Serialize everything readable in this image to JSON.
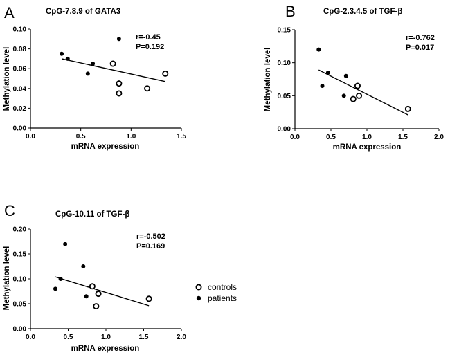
{
  "legend": {
    "entries": [
      {
        "label": "controls",
        "marker": "open-circle"
      },
      {
        "label": "patients",
        "marker": "filled-circle"
      }
    ]
  },
  "chart_data": [
    {
      "panel": "A",
      "type": "scatter",
      "title": "CpG-7.8.9 of GATA3",
      "xlabel": "mRNA expression",
      "ylabel": "Methylation level",
      "xlim": [
        0,
        1.5
      ],
      "ylim": [
        0,
        0.1
      ],
      "xticks": [
        0,
        0.5,
        1.0,
        1.5
      ],
      "xtick_labels": [
        "0.0",
        "0.5",
        "1.0",
        "1.5"
      ],
      "yticks": [
        0,
        0.02,
        0.04,
        0.06,
        0.08,
        0.1
      ],
      "ytick_labels": [
        "0.00",
        "0.02",
        "0.04",
        "0.06",
        "0.08",
        "0.10"
      ],
      "series": [
        {
          "name": "controls",
          "x": [
            0.82,
            0.88,
            0.88,
            1.16,
            1.34
          ],
          "y": [
            0.065,
            0.045,
            0.035,
            0.04,
            0.055
          ]
        },
        {
          "name": "patients",
          "x": [
            0.31,
            0.37,
            0.57,
            0.62,
            0.88
          ],
          "y": [
            0.075,
            0.07,
            0.055,
            0.065,
            0.09
          ]
        }
      ],
      "fit_line": {
        "x": [
          0.31,
          1.34
        ],
        "y": [
          0.07,
          0.047
        ]
      },
      "annotations": [
        "r=-0.45",
        "P=0.192"
      ]
    },
    {
      "panel": "B",
      "type": "scatter",
      "title": "CpG-2.3.4.5 of TGF-β",
      "xlabel": "mRNA expression",
      "ylabel": "Methylation level",
      "xlim": [
        0,
        2.0
      ],
      "ylim": [
        0,
        0.15
      ],
      "xticks": [
        0,
        0.5,
        1.0,
        1.5,
        2.0
      ],
      "xtick_labels": [
        "0.0",
        "0.5",
        "1.0",
        "1.5",
        "2.0"
      ],
      "yticks": [
        0,
        0.05,
        0.1,
        0.15
      ],
      "ytick_labels": [
        "0.00",
        "0.05",
        "0.10",
        "0.15"
      ],
      "series": [
        {
          "name": "controls",
          "x": [
            0.81,
            0.87,
            0.89,
            1.57
          ],
          "y": [
            0.045,
            0.065,
            0.05,
            0.03
          ]
        },
        {
          "name": "patients",
          "x": [
            0.33,
            0.38,
            0.46,
            0.68,
            0.71
          ],
          "y": [
            0.12,
            0.065,
            0.085,
            0.05,
            0.08
          ]
        }
      ],
      "fit_line": {
        "x": [
          0.33,
          1.57
        ],
        "y": [
          0.089,
          0.021
        ]
      },
      "annotations": [
        "r=-0.762",
        "P=0.017"
      ]
    },
    {
      "panel": "C",
      "type": "scatter",
      "title": "CpG-10.11 of TGF-β",
      "xlabel": "mRNA expression",
      "ylabel": "Methylation level",
      "xlim": [
        0,
        2.0
      ],
      "ylim": [
        0,
        0.2
      ],
      "xticks": [
        0,
        0.5,
        1.0,
        1.5,
        2.0
      ],
      "xtick_labels": [
        "0.0",
        "0.5",
        "1.0",
        "1.5",
        "2.0"
      ],
      "yticks": [
        0,
        0.05,
        0.1,
        0.15,
        0.2
      ],
      "ytick_labels": [
        "0.00",
        "0.05",
        "0.10",
        "0.15",
        "0.20"
      ],
      "series": [
        {
          "name": "controls",
          "x": [
            0.82,
            0.87,
            0.9,
            1.57
          ],
          "y": [
            0.085,
            0.045,
            0.07,
            0.06
          ]
        },
        {
          "name": "patients",
          "x": [
            0.33,
            0.4,
            0.46,
            0.7,
            0.74
          ],
          "y": [
            0.08,
            0.1,
            0.17,
            0.125,
            0.065
          ]
        }
      ],
      "fit_line": {
        "x": [
          0.33,
          1.57
        ],
        "y": [
          0.104,
          0.046
        ]
      },
      "annotations": [
        "r=-0.502",
        "P=0.169"
      ]
    }
  ]
}
